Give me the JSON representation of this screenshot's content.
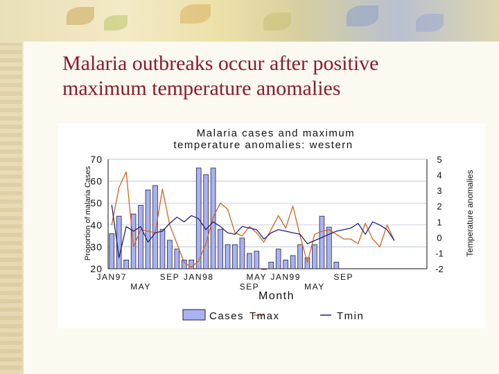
{
  "slide": {
    "title_line1": "Malaria outbreaks occur after positive",
    "title_line2": "maximum temperature anomalies"
  },
  "colors": {
    "title": "#8b1a2a",
    "bar_fill": "#aab2f2",
    "bar_stroke": "#202040",
    "tmax": "#d0651f",
    "tmin": "#202080"
  },
  "chart_data": {
    "type": "bar",
    "title_line1": "Malaria cases and maximum",
    "title_line2": "temperature anomalies: western",
    "xlabel": "Month",
    "ylabel_left": "Proportion of malaria Cases",
    "ylabel_right": "Temperature anomalies",
    "ylim_left": [
      20,
      70
    ],
    "ylim_right": [
      -2,
      5
    ],
    "yticks_left": [
      "20",
      "30",
      "40",
      "50",
      "60",
      "70"
    ],
    "yticks_right": [
      "-2",
      "-1",
      "0",
      "1",
      "2",
      "3",
      "4",
      "5"
    ],
    "xticks_top": [
      "JAN97",
      "SEP",
      "JAN98",
      "MAY",
      "JAN99",
      "SEP"
    ],
    "xticks_bottom": [
      "MAY",
      "SEP",
      "MAY"
    ],
    "legend": [
      "Cases",
      "Tmax",
      "Tmin"
    ],
    "grid": "horizontal",
    "months": 44,
    "series": [
      {
        "name": "Cases",
        "type": "bar",
        "values": [
          36,
          44,
          24,
          45,
          49,
          56,
          58,
          38,
          33,
          29,
          24,
          24,
          66,
          63,
          66,
          38,
          31,
          31,
          34,
          27,
          28,
          20,
          23,
          29,
          24,
          26,
          31,
          25,
          31,
          44,
          39,
          23
        ]
      },
      {
        "name": "Tmax",
        "type": "line",
        "values": [
          0.8,
          3.2,
          4.2,
          -0.6,
          0.5,
          0.4,
          0.3,
          3.1,
          0.8,
          -0.4,
          -1.6,
          -1.9,
          -1.5,
          -0.4,
          1.3,
          2.2,
          1.8,
          0.3,
          0.1,
          0.7,
          0.3,
          -0.3,
          0.5,
          1.4,
          0.6,
          2.0,
          0.1,
          -1.6,
          0.2,
          0.4,
          0.5,
          0.2,
          -0.1,
          -0.1,
          -0.4,
          0.9,
          -0.1,
          -0.6,
          0.8,
          -0.2
        ]
      },
      {
        "name": "Tmin",
        "type": "line",
        "values": [
          2.1,
          -1.3,
          0.7,
          0.4,
          0.7,
          -0.3,
          0.3,
          0.4,
          0.9,
          1.3,
          1.0,
          1.4,
          1.2,
          0.5,
          1.0,
          0.7,
          0.3,
          0.2,
          0.7,
          0.6,
          0.5,
          -0.1,
          0.3,
          0.5,
          0.4,
          0.3,
          0.2,
          -0.4,
          -0.2,
          0.0,
          0.2,
          0.4,
          0.5,
          0.6,
          0.9,
          0.2,
          1.0,
          0.8,
          0.5,
          -0.2
        ]
      }
    ]
  }
}
